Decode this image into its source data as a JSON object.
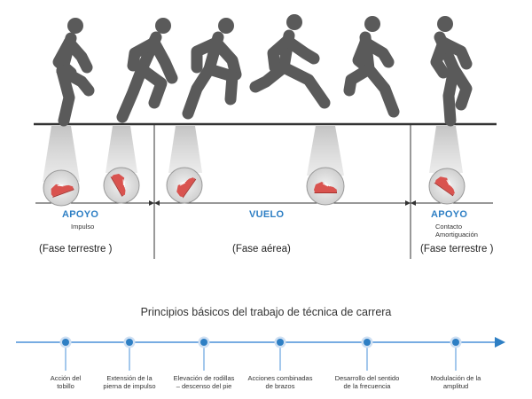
{
  "phases": [
    {
      "title": "APOYO",
      "details": [
        "Impulso"
      ],
      "fase": "(Fase terrestre )"
    },
    {
      "title": "VUELO",
      "details": [],
      "fase": "(Fase aérea)"
    },
    {
      "title": "APOYO",
      "details": [
        "Contacto",
        "Amortiguación"
      ],
      "fase": "(Fase terrestre )"
    }
  ],
  "principles": {
    "title": "Principios básicos del trabajo de técnica de carrera",
    "steps": [
      {
        "line1": "Acción del",
        "line2": "tobillo"
      },
      {
        "line1": "Extensión de la",
        "line2": "pierna de impulso"
      },
      {
        "line1": "Elevación de rodillas",
        "line2": "– descenso del pie"
      },
      {
        "line1": "Acciones combinadas",
        "line2": "de brazos"
      },
      {
        "line1": "Desarrollo del sentido",
        "line2": "de la frecuencia"
      },
      {
        "line1": "Modulación de la",
        "line2": "amplitud"
      }
    ]
  },
  "icons": [
    "runner-figure-icon",
    "shoe-icon",
    "timeline-node-icon",
    "arrow-right-icon"
  ],
  "colors": {
    "figure": "#5a5a5a",
    "shoe": "#d9534f",
    "accent": "#2e7fc4",
    "spotlight": "#c8c8c8",
    "line": "#333333"
  }
}
